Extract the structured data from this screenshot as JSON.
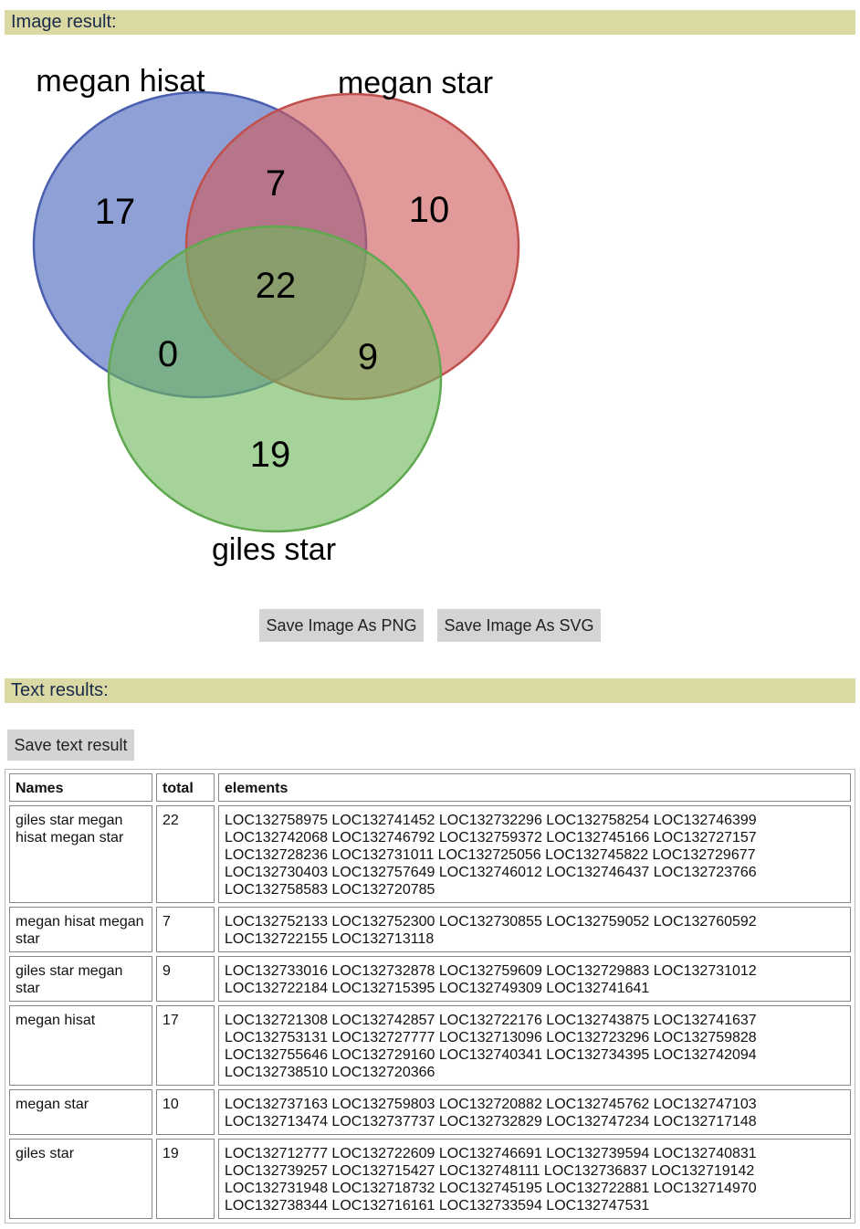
{
  "image_section": {
    "title": "Image result:",
    "venn": {
      "sets": [
        {
          "name": "megan hisat",
          "color": "#4a66bd"
        },
        {
          "name": "megan star",
          "color": "#d05a5a"
        },
        {
          "name": "giles star",
          "color": "#6db85c"
        }
      ],
      "regions": {
        "megan_hisat_only": "17",
        "megan_hisat_megan_star": "7",
        "megan_star_only": "10",
        "all_three": "22",
        "megan_hisat_giles_star": "0",
        "megan_star_giles_star": "9",
        "giles_star_only": "19"
      }
    },
    "buttons": {
      "png": "Save Image As PNG",
      "svg": "Save Image As SVG"
    }
  },
  "text_section": {
    "title": "Text results:",
    "save_button": "Save text result",
    "columns": [
      "Names",
      "total",
      "elements"
    ],
    "rows": [
      {
        "names": "giles star megan hisat megan star",
        "total": "22",
        "elements": "LOC132758975 LOC132741452 LOC132732296 LOC132758254 LOC132746399 LOC132742068 LOC132746792 LOC132759372 LOC132745166 LOC132727157 LOC132728236 LOC132731011 LOC132725056 LOC132745822 LOC132729677 LOC132730403 LOC132757649 LOC132746012 LOC132746437 LOC132723766 LOC132758583 LOC132720785"
      },
      {
        "names": "megan hisat megan star",
        "total": "7",
        "elements": "LOC132752133 LOC132752300 LOC132730855 LOC132759052 LOC132760592 LOC132722155 LOC132713118"
      },
      {
        "names": "giles star megan star",
        "total": "9",
        "elements": "LOC132733016 LOC132732878 LOC132759609 LOC132729883 LOC132731012 LOC132722184 LOC132715395 LOC132749309 LOC132741641"
      },
      {
        "names": "megan hisat",
        "total": "17",
        "elements": "LOC132721308 LOC132742857 LOC132722176 LOC132743875 LOC132741637 LOC132753131 LOC132727777 LOC132713096 LOC132723296 LOC132759828 LOC132755646 LOC132729160 LOC132740341 LOC132734395 LOC132742094 LOC132738510 LOC132720366"
      },
      {
        "names": "megan star",
        "total": "10",
        "elements": "LOC132737163 LOC132759803 LOC132720882 LOC132745762 LOC132747103 LOC132713474 LOC132737737 LOC132732829 LOC132747234 LOC132717148"
      },
      {
        "names": "giles star",
        "total": "19",
        "elements": "LOC132712777 LOC132722609 LOC132746691 LOC132739594 LOC132740831 LOC132739257 LOC132715427 LOC132748111 LOC132736837 LOC132719142 LOC132731948 LOC132718732 LOC132745195 LOC132722881 LOC132714970 LOC132738344 LOC132716161 LOC132733594 LOC132747531"
      }
    ]
  }
}
